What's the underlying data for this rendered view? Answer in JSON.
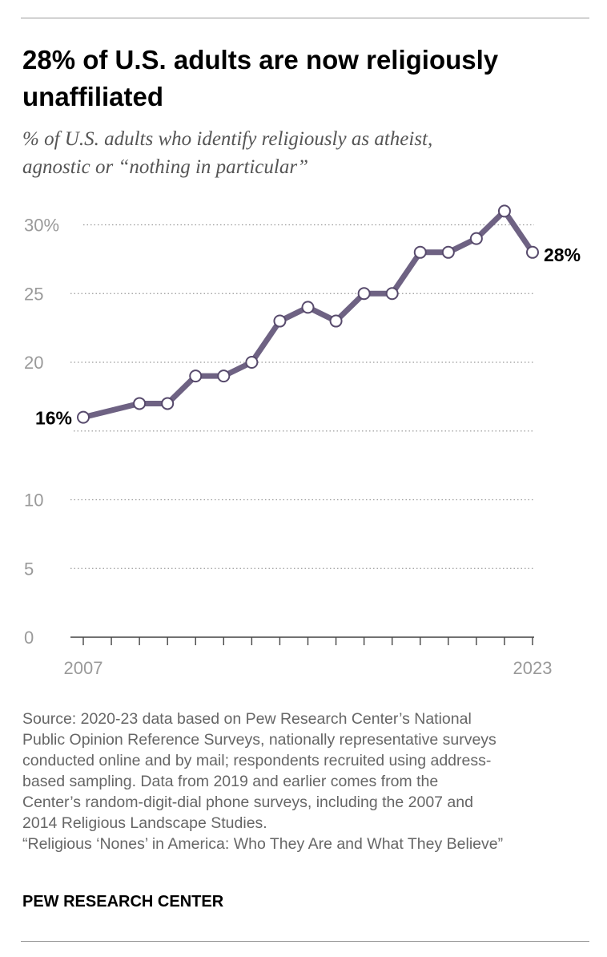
{
  "title": "28% of U.S. adults are now religiously unaffiliated",
  "subtitle_lines": [
    "% of U.S. adults who identify religiously as atheist,",
    "agnostic or “nothing in particular”"
  ],
  "chart_data": {
    "type": "line",
    "x": [
      2007,
      2008,
      2009,
      2010,
      2011,
      2012,
      2013,
      2014,
      2015,
      2016,
      2017,
      2018,
      2019,
      2020,
      2021,
      2022,
      2023
    ],
    "series": [
      {
        "values": [
          16,
          null,
          17,
          17,
          19,
          19,
          20,
          23,
          24,
          23,
          25,
          25,
          28,
          28,
          29,
          31,
          28
        ]
      }
    ],
    "y_ticks": [
      "0",
      "5",
      "10",
      "",
      "20",
      "25",
      "30%"
    ],
    "y_tick_values": [
      0,
      5,
      10,
      15,
      20,
      25,
      30
    ],
    "x_tick_labels": [
      "2007",
      "2023"
    ],
    "start_label": "16%",
    "end_label": "28%",
    "ylim": [
      0,
      30
    ],
    "grid": "dotted horizontal",
    "line_color": "#6e6283",
    "marker": "white circle"
  },
  "notes": [
    "Source: 2020-23 data based on Pew Research Center’s National",
    "Public Opinion Reference Surveys, nationally representative surveys",
    "conducted online and by mail; respondents recruited using address-",
    "based sampling. Data from 2019 and earlier comes from the",
    "Center’s random-digit-dial phone surveys, including the 2007 and",
    "2014 Religious Landscape Studies.",
    "“Religious ‘Nones’ in America: Who They Are and What They Believe”"
  ],
  "brand": "PEW RESEARCH CENTER"
}
